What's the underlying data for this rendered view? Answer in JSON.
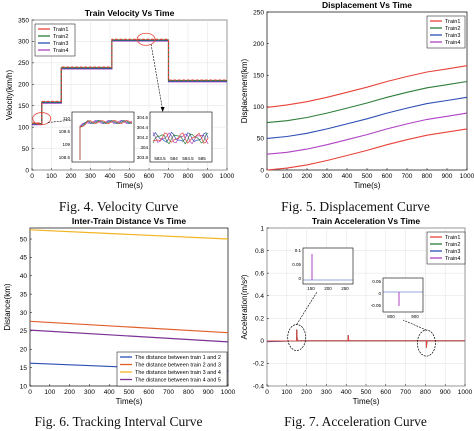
{
  "captions": {
    "fig4": "Fig. 4.  Velocity Curve",
    "fig5": "Fig. 5.  Displacement Curve",
    "fig6": "Fig. 6.  Tracking Interval Curve",
    "fig7": "Fig. 7.  Acceleration Curve"
  },
  "colors": {
    "train1": "#e8433a",
    "train2": "#2f7d3a",
    "train3": "#2d4fb5",
    "train4": "#b043c4",
    "gap12": "#2d4fb5",
    "gap23": "#e0602a",
    "gap34": "#f2b420",
    "gap45": "#7b3294"
  },
  "chart_data": [
    {
      "id": "velocity",
      "type": "line",
      "title": "Train Velocity Vs Time",
      "xlabel": "Time(s)",
      "ylabel": "Velocity(km/h)",
      "xlim": [
        0,
        1000
      ],
      "ylim": [
        0,
        350
      ],
      "xticks": [
        "0",
        "100",
        "200",
        "300",
        "400",
        "500",
        "600",
        "700",
        "800",
        "900",
        "1000"
      ],
      "yticks": [
        "0",
        "50",
        "100",
        "150",
        "200",
        "250",
        "300",
        "350"
      ],
      "legend": [
        "Train1",
        "Train2",
        "Train3",
        "Train4"
      ],
      "legend_position": "top-left",
      "profile": {
        "x": [
          0,
          50,
          50,
          150,
          150,
          410,
          410,
          700,
          700,
          1000
        ],
        "y": [
          110,
          110,
          160,
          160,
          240,
          240,
          305,
          305,
          210,
          210
        ]
      },
      "inset1": {
        "yticks": [
          "110",
          "109.5",
          "109",
          "108.5"
        ],
        "xticks": [
          "",
          "",
          ""
        ]
      },
      "inset2": {
        "yticks": [
          "304.6",
          "304.4",
          "304.2",
          "304",
          "303.8"
        ],
        "xticks": [
          "583.5",
          "584",
          "584.5",
          "585"
        ]
      }
    },
    {
      "id": "displacement",
      "type": "line",
      "title": "Displacement Vs Time",
      "xlabel": "Time(s)",
      "ylabel": "Displacement(km)",
      "xlim": [
        0,
        1000
      ],
      "ylim": [
        0,
        250
      ],
      "xticks": [
        "0",
        "100",
        "200",
        "300",
        "400",
        "500",
        "600",
        "700",
        "800",
        "900",
        "1000"
      ],
      "yticks": [
        "0",
        "50",
        "100",
        "150",
        "200",
        "250"
      ],
      "legend_position": "top-right",
      "x": [
        0,
        100,
        200,
        300,
        400,
        500,
        600,
        700,
        800,
        900,
        1000
      ],
      "series": [
        {
          "name": "Train1",
          "values": [
            99,
            103,
            108,
            115,
            123,
            131,
            140,
            148,
            155,
            160,
            165
          ]
        },
        {
          "name": "Train2",
          "values": [
            75,
            78,
            83,
            90,
            98,
            106,
            115,
            123,
            130,
            135,
            140
          ]
        },
        {
          "name": "Train3",
          "values": [
            50,
            53,
            58,
            65,
            73,
            81,
            90,
            98,
            105,
            110,
            115
          ]
        },
        {
          "name": "Train4",
          "values": [
            25,
            28,
            33,
            40,
            48,
            56,
            65,
            73,
            80,
            85,
            90
          ]
        },
        {
          "name": "",
          "values": [
            0,
            3,
            8,
            15,
            23,
            31,
            40,
            48,
            55,
            60,
            65
          ]
        }
      ]
    },
    {
      "id": "interval",
      "type": "line",
      "title": "Inter-Train Distance Vs Time",
      "xlabel": "Time(s)",
      "ylabel": "Distance(km)",
      "xlim": [
        0,
        1000
      ],
      "ylim": [
        10,
        53
      ],
      "xticks": [
        "0",
        "100",
        "200",
        "300",
        "400",
        "500",
        "600",
        "700",
        "800",
        "900",
        "1000"
      ],
      "yticks": [
        "10",
        "15",
        "20",
        "25",
        "30",
        "35",
        "40",
        "45",
        "50"
      ],
      "legend_position": "bottom-right",
      "x": [
        0,
        1000
      ],
      "series": [
        {
          "name": "The distance between train 1 and 2",
          "values": [
            16.2,
            14.0
          ]
        },
        {
          "name": "The distance between train 2 and 3",
          "values": [
            27.6,
            24.5
          ]
        },
        {
          "name": "The distance between train 3 and 4",
          "values": [
            52.5,
            50.0
          ]
        },
        {
          "name": "The distance between train 4 and 5",
          "values": [
            25.2,
            22.0
          ]
        }
      ]
    },
    {
      "id": "acceleration",
      "type": "line",
      "title": "Train Acceleration Vs Time",
      "xlabel": "Time(s)",
      "ylabel": "Acceleration(m/s²)",
      "xlim": [
        0,
        1000
      ],
      "ylim": [
        -0.4,
        1
      ],
      "xticks": [
        "0",
        "100",
        "200",
        "300",
        "400",
        "500",
        "600",
        "700",
        "800",
        "900",
        "1000"
      ],
      "yticks": [
        "1",
        "0.8",
        "0.6",
        "0.4",
        "0.2",
        "0",
        "-0.2",
        "-0.4"
      ],
      "legend": [
        "Train1",
        "Train2",
        "Train3",
        "Train4"
      ],
      "legend_position": "top-right",
      "spikes": [
        {
          "x": 150,
          "y": 0.1
        },
        {
          "x": 410,
          "y": 0.05
        },
        {
          "x": 805,
          "y": -0.06
        }
      ],
      "inset1": {
        "xticks": [
          "150",
          "200",
          "250"
        ],
        "yticks": [
          "0.1",
          "0.05",
          "0"
        ]
      },
      "inset2": {
        "xticks": [
          "800",
          "900"
        ],
        "yticks": [
          "0.05",
          "0",
          "-0.05"
        ]
      }
    }
  ]
}
